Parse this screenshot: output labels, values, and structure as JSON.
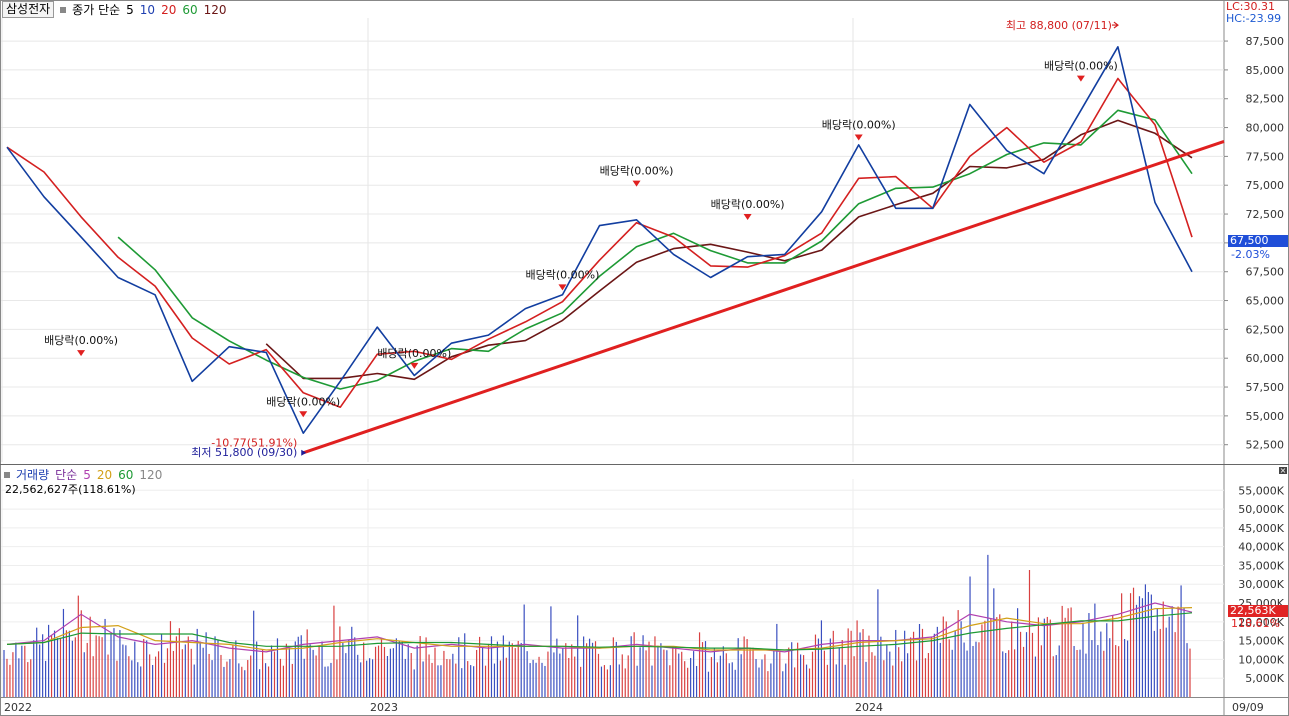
{
  "header": {
    "ticker": "삼성전자",
    "legend_label": "종가 단순",
    "ma_periods": [
      {
        "label": "5",
        "color": "#000000"
      },
      {
        "label": "10",
        "color": "#1e3fb0"
      },
      {
        "label": "20",
        "color": "#d42020"
      },
      {
        "label": "60",
        "color": "#1e9a35"
      },
      {
        "label": "120",
        "color": "#6b1616"
      }
    ],
    "lc_label": "LC:30.31",
    "hc_label": "HC:-23.99"
  },
  "last": {
    "price": "67,500",
    "change": "-2.03%",
    "volume": "22,563K",
    "volume_pct": "118.61%"
  },
  "volume_panel": {
    "label": "거래량",
    "legend_label": "단순",
    "ma_periods": [
      {
        "label": "5",
        "color": "#b040b0"
      },
      {
        "label": "20",
        "color": "#d2a018"
      },
      {
        "label": "60",
        "color": "#1e9a35"
      },
      {
        "label": "120",
        "color": "#888888"
      }
    ],
    "info": "22,562,627주(118.61%)",
    "close_icon": "close-icon"
  },
  "chart_data": [
    {
      "type": "line",
      "title": "",
      "ylim": [
        51000,
        89500
      ],
      "y_ticks": [
        "52,500",
        "55,000",
        "57,500",
        "60,000",
        "62,500",
        "65,000",
        "67,500",
        "70,000",
        "72,500",
        "75,000",
        "77,500",
        "80,000",
        "82,500",
        "85,000",
        "87,500"
      ],
      "x_ticks": [
        "2022",
        "2023",
        "2024",
        "09/09"
      ],
      "series": [
        {
          "color": "#123ea0",
          "x": [
            "2022-01",
            "2022-02",
            "2022-03",
            "2022-04",
            "2022-05",
            "2022-06",
            "2022-07",
            "2022-08",
            "2022-09",
            "2022-10",
            "2022-11",
            "2022-12",
            "2023-01",
            "2023-02",
            "2023-03",
            "2023-04",
            "2023-05",
            "2023-06",
            "2023-07",
            "2023-08",
            "2023-09",
            "2023-10",
            "2023-11",
            "2023-12",
            "2024-01",
            "2024-02",
            "2024-03",
            "2024-04",
            "2024-05",
            "2024-06",
            "2024-07",
            "2024-08",
            "2024-09"
          ],
          "values": [
            78300,
            74000,
            70500,
            67000,
            65500,
            58000,
            61000,
            60500,
            53500,
            58000,
            62700,
            58500,
            61300,
            62000,
            64300,
            65500,
            71500,
            72000,
            69000,
            67000,
            68800,
            69000,
            72700,
            78500,
            73000,
            73000,
            82000,
            78000,
            76000,
            81500,
            87000,
            73500,
            67500
          ]
        }
      ],
      "annotations": [
        {
          "text": "최고 88,800 (07/11)",
          "x": "2024-07",
          "y": 88800,
          "color": "#d21e1e"
        },
        {
          "text": "최저 51,800 (09/30)",
          "x": "2022-09",
          "y": 51800,
          "color": "#1e1e9a"
        },
        {
          "text": "-10.77(51.91%)",
          "x": "2022-09",
          "y": 52100,
          "color": "#d21e1e"
        },
        {
          "text": "배당락(0.00%)",
          "x": "2022-03",
          "y": 60700
        },
        {
          "text": "배당락(0.00%)",
          "x": "2022-09",
          "y": 55400
        },
        {
          "text": "배당락(0.00%)",
          "x": "2022-12",
          "y": 59600
        },
        {
          "text": "배당락(0.00%)",
          "x": "2023-04",
          "y": 66400
        },
        {
          "text": "배당락(0.00%)",
          "x": "2023-06",
          "y": 75400
        },
        {
          "text": "배당락(0.00%)",
          "x": "2023-09",
          "y": 72500
        },
        {
          "text": "배당락(0.00%)",
          "x": "2023-12",
          "y": 79400
        },
        {
          "text": "배당락(0.00%)",
          "x": "2024-06",
          "y": 84500
        }
      ]
    },
    {
      "type": "bar",
      "title": "",
      "ylim": [
        0,
        58000
      ],
      "y_ticks": [
        "5,000K",
        "10,000K",
        "15,000K",
        "20,000K",
        "25,000K",
        "30,000K",
        "35,000K",
        "40,000K",
        "45,000K",
        "50,000K",
        "55,000K"
      ],
      "x_ticks": [
        "2022",
        "2023",
        "2024",
        "09/09"
      ],
      "series": [
        {
          "name": "거래량",
          "color": "#d42020",
          "x": [
            "2022-01",
            "2022-02",
            "2022-03",
            "2022-04",
            "2022-05",
            "2022-06",
            "2022-07",
            "2022-08",
            "2022-09",
            "2022-10",
            "2022-11",
            "2022-12",
            "2023-01",
            "2023-02",
            "2023-03",
            "2023-04",
            "2023-05",
            "2023-06",
            "2023-07",
            "2023-08",
            "2023-09",
            "2023-10",
            "2023-11",
            "2023-12",
            "2024-01",
            "2024-02",
            "2024-03",
            "2024-04",
            "2024-05",
            "2024-06",
            "2024-07",
            "2024-08",
            "2024-09"
          ],
          "values": [
            14000,
            15000,
            22000,
            16000,
            14000,
            15000,
            13000,
            12000,
            14000,
            15000,
            16000,
            13000,
            14000,
            13000,
            14000,
            13000,
            13000,
            14000,
            13000,
            12000,
            13000,
            12000,
            14000,
            15000,
            15000,
            16000,
            22000,
            20000,
            19000,
            20000,
            22000,
            25000,
            22563
          ]
        }
      ],
      "annotations": [
        {
          "text": "22,562,627주(118.61%)",
          "x": "2024-09",
          "y": 22563
        }
      ]
    }
  ]
}
